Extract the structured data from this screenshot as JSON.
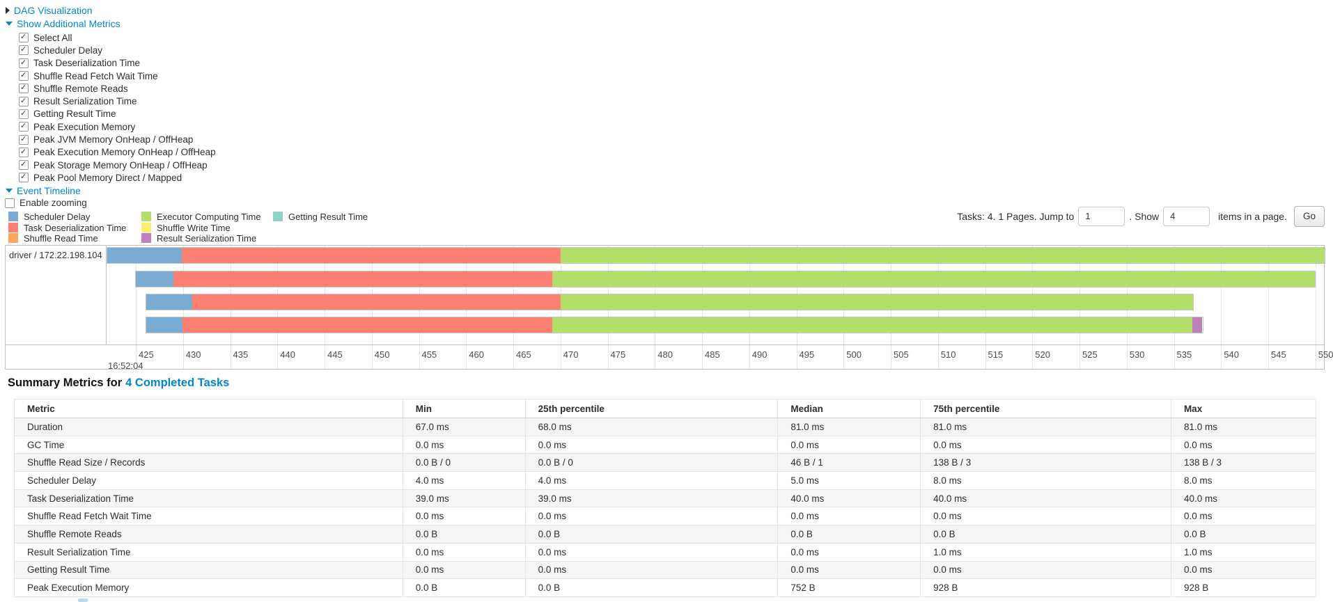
{
  "toggles": {
    "dag": {
      "label": "DAG Visualization",
      "expanded": false
    },
    "additional_metrics": {
      "label": "Show Additional Metrics",
      "expanded": true
    },
    "event_timeline": {
      "label": "Event Timeline",
      "expanded": true
    }
  },
  "metrics_panel": {
    "items": [
      {
        "label": "Select All",
        "checked": true
      },
      {
        "label": "Scheduler Delay",
        "checked": true
      },
      {
        "label": "Task Deserialization Time",
        "checked": true
      },
      {
        "label": "Shuffle Read Fetch Wait Time",
        "checked": true
      },
      {
        "label": "Shuffle Remote Reads",
        "checked": true
      },
      {
        "label": "Result Serialization Time",
        "checked": true
      },
      {
        "label": "Getting Result Time",
        "checked": true
      },
      {
        "label": "Peak Execution Memory",
        "checked": true
      },
      {
        "label": "Peak JVM Memory OnHeap / OffHeap",
        "checked": true
      },
      {
        "label": "Peak Execution Memory OnHeap / OffHeap",
        "checked": true
      },
      {
        "label": "Peak Storage Memory OnHeap / OffHeap",
        "checked": true
      },
      {
        "label": "Peak Pool Memory Direct / Mapped",
        "checked": true
      }
    ]
  },
  "enable_zooming": {
    "label": "Enable zooming",
    "checked": false
  },
  "legend": {
    "items": [
      {
        "key": "scheduler_delay",
        "label": "Scheduler Delay",
        "color": "#7AACD3",
        "col": 0,
        "row": 0
      },
      {
        "key": "task_deserialization",
        "label": "Task Deserialization Time",
        "color": "#FB8072",
        "col": 0,
        "row": 1
      },
      {
        "key": "shuffle_read",
        "label": "Shuffle Read Time",
        "color": "#FBA75B",
        "col": 0,
        "row": 2
      },
      {
        "key": "executor_computing",
        "label": "Executor Computing Time",
        "color": "#B3DE69",
        "col": 1,
        "row": 0
      },
      {
        "key": "shuffle_write",
        "label": "Shuffle Write Time",
        "color": "#FFED6F",
        "col": 1,
        "row": 1
      },
      {
        "key": "result_serialization",
        "label": "Result Serialization Time",
        "color": "#BC80BD",
        "col": 1,
        "row": 2
      },
      {
        "key": "getting_result",
        "label": "Getting Result Time",
        "color": "#8DD3C7",
        "col": 2,
        "row": 0
      }
    ]
  },
  "pagination": {
    "prefix": "Tasks: 4. 1 Pages. Jump to",
    "jump_value": "1",
    "middle": ". Show",
    "show_value": "4",
    "suffix": "items in a page.",
    "go_label": "Go"
  },
  "chart_data": {
    "type": "timeline",
    "row_label": "driver / 172.22.198.104",
    "axis": {
      "major_label": "16:52:04",
      "tick_start": 425,
      "tick_end": 550,
      "tick_step": 5,
      "domain_min": 421.9,
      "domain_max": 551.05,
      "unit": "ms"
    },
    "colors": {
      "scheduler_delay": "#7AACD3",
      "task_deserialization": "#FB8072",
      "shuffle_read": "#FBA75B",
      "executor_computing": "#B3DE69",
      "shuffle_write": "#FFED6F",
      "result_serialization": "#BC80BD",
      "getting_result": "#8DD3C7"
    },
    "tasks": [
      {
        "segments": [
          {
            "type": "scheduler_delay",
            "from": 421.9,
            "to": 429.8
          },
          {
            "type": "task_deserialization",
            "from": 429.8,
            "to": 470.0
          },
          {
            "type": "executor_computing",
            "from": 470.0,
            "to": 551.05
          }
        ]
      },
      {
        "segments": [
          {
            "type": "scheduler_delay",
            "from": 424.9,
            "to": 428.9
          },
          {
            "type": "task_deserialization",
            "from": 428.9,
            "to": 469.1
          },
          {
            "type": "executor_computing",
            "from": 469.1,
            "to": 550.0
          }
        ]
      },
      {
        "segments": [
          {
            "type": "scheduler_delay",
            "from": 426.0,
            "to": 430.9
          },
          {
            "type": "task_deserialization",
            "from": 430.9,
            "to": 470.0
          },
          {
            "type": "executor_computing",
            "from": 470.0,
            "to": 537.1
          }
        ]
      },
      {
        "segments": [
          {
            "type": "scheduler_delay",
            "from": 426.0,
            "to": 429.9
          },
          {
            "type": "task_deserialization",
            "from": 429.9,
            "to": 469.1
          },
          {
            "type": "executor_computing",
            "from": 469.1,
            "to": 537.0
          },
          {
            "type": "result_serialization",
            "from": 537.0,
            "to": 538.1
          }
        ]
      }
    ]
  },
  "summary": {
    "heading": "Summary Metrics for",
    "completed_link": "4 Completed Tasks",
    "table": {
      "headers": [
        "Metric",
        "Min",
        "25th percentile",
        "Median",
        "75th percentile",
        "Max"
      ],
      "col_widths_pct": [
        29.84,
        9.41,
        19.41,
        10.96,
        19.25,
        11.13
      ],
      "rows": [
        {
          "metric": "Duration",
          "values": [
            "67.0 ms",
            "68.0 ms",
            "81.0 ms",
            "81.0 ms",
            "81.0 ms"
          ]
        },
        {
          "metric": "GC Time",
          "values": [
            "0.0 ms",
            "0.0 ms",
            "0.0 ms",
            "0.0 ms",
            "0.0 ms"
          ]
        },
        {
          "metric": "Shuffle Read Size / Records",
          "values": [
            "0.0 B / 0",
            "0.0 B / 0",
            "46 B / 1",
            "138 B / 3",
            "138 B / 3"
          ]
        },
        {
          "metric": "Scheduler Delay",
          "values": [
            "4.0 ms",
            "4.0 ms",
            "5.0 ms",
            "8.0 ms",
            "8.0 ms"
          ]
        },
        {
          "metric": "Task Deserialization Time",
          "values": [
            "39.0 ms",
            "39.0 ms",
            "40.0 ms",
            "40.0 ms",
            "40.0 ms"
          ]
        },
        {
          "metric": "Shuffle Read Fetch Wait Time",
          "values": [
            "0.0 ms",
            "0.0 ms",
            "0.0 ms",
            "0.0 ms",
            "0.0 ms"
          ]
        },
        {
          "metric": "Shuffle Remote Reads",
          "values": [
            "0.0 B",
            "0.0 B",
            "0.0 B",
            "0.0 B",
            "0.0 B"
          ]
        },
        {
          "metric": "Result Serialization Time",
          "values": [
            "0.0 ms",
            "0.0 ms",
            "0.0 ms",
            "1.0 ms",
            "1.0 ms"
          ]
        },
        {
          "metric": "Getting Result Time",
          "values": [
            "0.0 ms",
            "0.0 ms",
            "0.0 ms",
            "0.0 ms",
            "0.0 ms"
          ]
        },
        {
          "metric": "Peak Execution Memory",
          "values": [
            "0.0 B",
            "0.0 B",
            "752 B",
            "928 B",
            "928 B"
          ]
        }
      ]
    }
  }
}
